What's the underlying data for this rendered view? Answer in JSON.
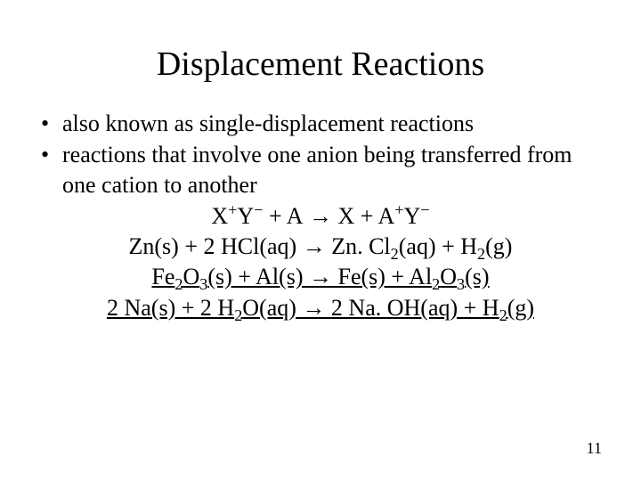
{
  "colors": {
    "background": "#ffffff",
    "text": "#000000"
  },
  "typography": {
    "title_fontsize": 38,
    "body_fontsize": 26,
    "pagenum_fontsize": 18,
    "font_family": "Times New Roman"
  },
  "title": "Displacement Reactions",
  "bullets": [
    "also known as single-displacement reactions",
    "reactions that involve one anion being transferred from one cation to another"
  ],
  "equations": {
    "generic": {
      "lhs_x": "X",
      "lhs_x_sup": "+",
      "lhs_y": "Y",
      "lhs_y_sup": "−",
      "plus1": " +  ",
      "lhs_a": "A",
      "arrow": " → ",
      "rhs_x": "X",
      "plus2": " + ",
      "rhs_a": "A",
      "rhs_a_sup": "+",
      "rhs_y": "Y",
      "rhs_y_sup": "−"
    },
    "eq1": {
      "l1": "Zn(s) + 2 HCl(aq)",
      "arrow": " → ",
      "r1a": "Zn. Cl",
      "r1a_sub": "2",
      "r1b": "(aq) + H",
      "r1b_sub": "2",
      "r1c": "(g)"
    },
    "eq2": {
      "l1": "Fe",
      "l1_sub": "2",
      "l2": "O",
      "l2_sub": "3",
      "l3": "(s) + Al(s)",
      "arrow": " → ",
      "r1": "Fe(s) + Al",
      "r1_sub": "2",
      "r2": "O",
      "r2_sub": "3",
      "r3": "(s)"
    },
    "eq3": {
      "l1": "2 Na(s) + 2 H",
      "l1_sub": "2",
      "l2": "O(aq)",
      "arrow": " → ",
      "r1": "2 Na. OH(aq) + H",
      "r1_sub": "2",
      "r2": "(g)"
    }
  },
  "page_number": "11"
}
